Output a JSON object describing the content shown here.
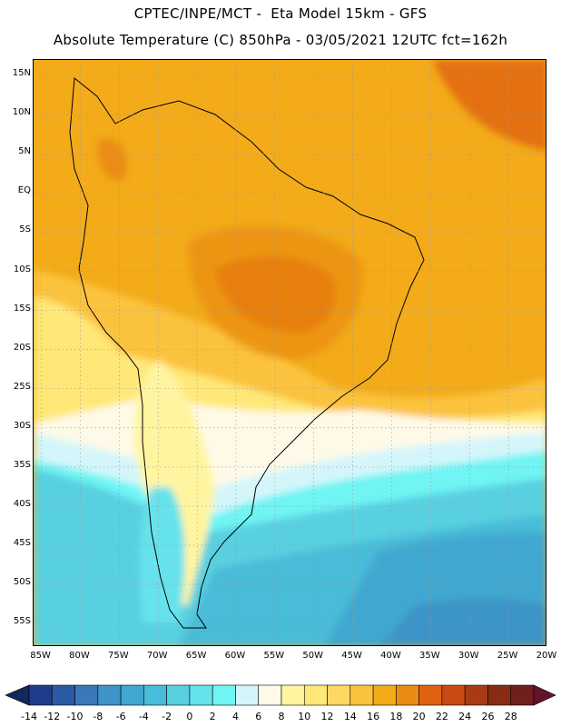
{
  "header": {
    "line1": "CPTEC/INPE/MCT -  Eta Model 15km - GFS",
    "line2": "Absolute Temperature (C) 850hPa - 03/05/2021 12UTC fct=162h"
  },
  "map": {
    "lon_range": [
      -86,
      -20
    ],
    "lat_range": [
      -58,
      17
    ],
    "lat_ticks": [
      "15N",
      "10N",
      "5N",
      "EQ",
      "5S",
      "10S",
      "15S",
      "20S",
      "25S",
      "30S",
      "35S",
      "40S",
      "45S",
      "50S",
      "55S"
    ],
    "lat_values": [
      15,
      10,
      5,
      0,
      -5,
      -10,
      -15,
      -20,
      -25,
      -30,
      -35,
      -40,
      -45,
      -50,
      -55
    ],
    "lon_ticks": [
      "85W",
      "80W",
      "75W",
      "70W",
      "65W",
      "60W",
      "55W",
      "50W",
      "45W",
      "40W",
      "35W",
      "30W",
      "25W",
      "20W"
    ],
    "lon_values": [
      -85,
      -80,
      -75,
      -70,
      -65,
      -60,
      -55,
      -50,
      -45,
      -40,
      -35,
      -30,
      -25,
      -20
    ],
    "gridlines": true
  },
  "colorbar": {
    "labels": [
      "-14",
      "-12",
      "-10",
      "-8",
      "-6",
      "-4",
      "-2",
      "0",
      "2",
      "4",
      "6",
      "8",
      "10",
      "12",
      "14",
      "16",
      "18",
      "20",
      "22",
      "24",
      "26",
      "28"
    ],
    "colors": [
      "#1e3c8c",
      "#2a5aa6",
      "#3a78b8",
      "#3e94c8",
      "#40a8d0",
      "#48bcd8",
      "#58d0e0",
      "#66e2ec",
      "#70f4f4",
      "#d4f6fa",
      "#fffae8",
      "#fff5a0",
      "#ffe878",
      "#fed860",
      "#fbc23e",
      "#f3ab1a",
      "#ea8c12",
      "#e06210",
      "#c84a14",
      "#a83a14",
      "#882c14",
      "#701e1e"
    ],
    "under_color": "#14285a",
    "over_color": "#641428"
  }
}
